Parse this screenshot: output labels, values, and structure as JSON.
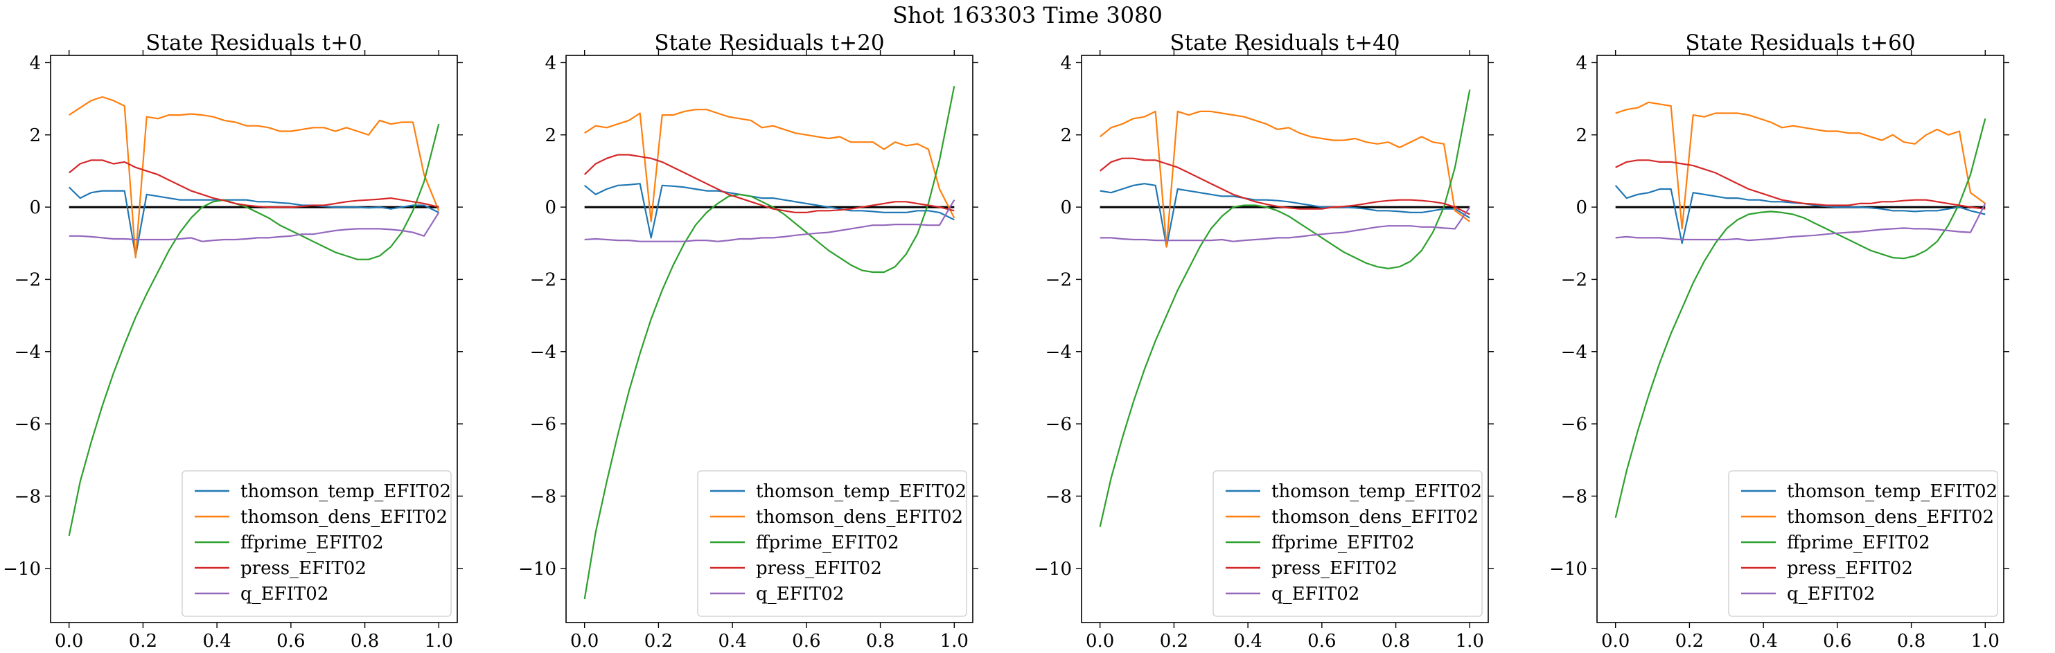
{
  "figure": {
    "suptitle": "Shot 163303   Time 3080"
  },
  "chart_data": [
    {
      "type": "line",
      "title": "State Residuals t+0",
      "xlim": [
        -0.05,
        1.05
      ],
      "ylim": [
        -11.5,
        4.2
      ],
      "xticks": [
        0.0,
        0.2,
        0.4,
        0.6,
        0.8,
        1.0
      ],
      "xtick_labels": [
        "0.0",
        "0.2",
        "0.4",
        "0.6",
        "0.8",
        "1.0"
      ],
      "yticks": [
        4,
        2,
        0,
        -2,
        -4,
        -6,
        -8,
        -10
      ],
      "ytick_labels": [
        "4",
        "2",
        "0",
        "−2",
        "−4",
        "−6",
        "−8",
        "−10"
      ],
      "legend": "lower-right",
      "grid": false,
      "baseline": 0,
      "x": [
        0.0,
        0.03,
        0.06,
        0.09,
        0.12,
        0.15,
        0.18,
        0.21,
        0.24,
        0.27,
        0.3,
        0.33,
        0.36,
        0.39,
        0.42,
        0.45,
        0.48,
        0.51,
        0.54,
        0.57,
        0.6,
        0.63,
        0.66,
        0.69,
        0.72,
        0.75,
        0.78,
        0.81,
        0.84,
        0.87,
        0.9,
        0.93,
        0.96,
        1.0
      ],
      "series": [
        {
          "name": "thomson_temp_EFIT02",
          "color": "#1f77b4",
          "values": [
            0.55,
            0.25,
            0.4,
            0.45,
            0.45,
            0.45,
            -1.35,
            0.35,
            0.3,
            0.25,
            0.2,
            0.2,
            0.2,
            0.2,
            0.2,
            0.2,
            0.2,
            0.15,
            0.15,
            0.12,
            0.1,
            0.05,
            0.05,
            0.02,
            0.0,
            0.0,
            0.0,
            -0.02,
            0.0,
            -0.05,
            0.0,
            0.05,
            0.05,
            -0.15
          ]
        },
        {
          "name": "thomson_dens_EFIT02",
          "color": "#ff7f0e",
          "values": [
            2.55,
            2.75,
            2.95,
            3.05,
            2.95,
            2.8,
            -1.4,
            2.5,
            2.45,
            2.55,
            2.55,
            2.58,
            2.55,
            2.5,
            2.4,
            2.35,
            2.25,
            2.25,
            2.2,
            2.1,
            2.1,
            2.15,
            2.2,
            2.2,
            2.1,
            2.2,
            2.1,
            2.0,
            2.4,
            2.3,
            2.35,
            2.35,
            0.9,
            -0.1
          ]
        },
        {
          "name": "ffprime_EFIT02",
          "color": "#2ca02c",
          "values": [
            -9.1,
            -7.6,
            -6.5,
            -5.5,
            -4.6,
            -3.8,
            -3.05,
            -2.4,
            -1.8,
            -1.2,
            -0.7,
            -0.3,
            0.0,
            0.15,
            0.2,
            0.1,
            0.0,
            -0.15,
            -0.3,
            -0.5,
            -0.65,
            -0.8,
            -0.95,
            -1.1,
            -1.25,
            -1.35,
            -1.45,
            -1.45,
            -1.35,
            -1.1,
            -0.7,
            -0.1,
            0.7,
            2.3
          ]
        },
        {
          "name": "press_EFIT02",
          "color": "#d62728",
          "values": [
            0.95,
            1.2,
            1.3,
            1.3,
            1.2,
            1.25,
            1.1,
            1.0,
            0.9,
            0.75,
            0.6,
            0.45,
            0.35,
            0.25,
            0.18,
            0.1,
            0.05,
            0.02,
            0.0,
            0.0,
            0.0,
            0.02,
            0.05,
            0.05,
            0.1,
            0.15,
            0.18,
            0.2,
            0.22,
            0.25,
            0.2,
            0.15,
            0.1,
            0.0
          ]
        },
        {
          "name": "q_EFIT02",
          "color": "#9467bd",
          "values": [
            -0.8,
            -0.8,
            -0.82,
            -0.85,
            -0.88,
            -0.88,
            -0.9,
            -0.9,
            -0.9,
            -0.9,
            -0.88,
            -0.85,
            -0.95,
            -0.92,
            -0.9,
            -0.9,
            -0.88,
            -0.85,
            -0.85,
            -0.82,
            -0.8,
            -0.75,
            -0.75,
            -0.7,
            -0.65,
            -0.62,
            -0.6,
            -0.6,
            -0.6,
            -0.62,
            -0.65,
            -0.7,
            -0.8,
            -0.15
          ]
        }
      ]
    },
    {
      "type": "line",
      "title": "State Residuals t+20",
      "xlim": [
        -0.05,
        1.05
      ],
      "ylim": [
        -11.5,
        4.2
      ],
      "xticks": [
        0.0,
        0.2,
        0.4,
        0.6,
        0.8,
        1.0
      ],
      "xtick_labels": [
        "0.0",
        "0.2",
        "0.4",
        "0.6",
        "0.8",
        "1.0"
      ],
      "yticks": [
        4,
        2,
        0,
        -2,
        -4,
        -6,
        -8,
        -10
      ],
      "ytick_labels": [
        "4",
        "2",
        "0",
        "−2",
        "−4",
        "−6",
        "−8",
        "−10"
      ],
      "legend": "lower-right",
      "grid": false,
      "baseline": 0,
      "x": [
        0.0,
        0.03,
        0.06,
        0.09,
        0.12,
        0.15,
        0.18,
        0.21,
        0.24,
        0.27,
        0.3,
        0.33,
        0.36,
        0.39,
        0.42,
        0.45,
        0.48,
        0.51,
        0.54,
        0.57,
        0.6,
        0.63,
        0.66,
        0.69,
        0.72,
        0.75,
        0.78,
        0.81,
        0.84,
        0.87,
        0.9,
        0.93,
        0.96,
        1.0
      ],
      "series": [
        {
          "name": "thomson_temp_EFIT02",
          "color": "#1f77b4",
          "values": [
            0.6,
            0.35,
            0.5,
            0.6,
            0.62,
            0.65,
            -0.85,
            0.6,
            0.58,
            0.55,
            0.5,
            0.45,
            0.45,
            0.4,
            0.35,
            0.3,
            0.25,
            0.25,
            0.2,
            0.15,
            0.1,
            0.05,
            0.0,
            -0.05,
            -0.1,
            -0.1,
            -0.12,
            -0.15,
            -0.15,
            -0.15,
            -0.1,
            -0.1,
            -0.15,
            -0.35
          ]
        },
        {
          "name": "thomson_dens_EFIT02",
          "color": "#ff7f0e",
          "values": [
            2.05,
            2.25,
            2.2,
            2.3,
            2.4,
            2.6,
            -0.4,
            2.55,
            2.55,
            2.65,
            2.7,
            2.7,
            2.6,
            2.5,
            2.45,
            2.4,
            2.2,
            2.25,
            2.15,
            2.05,
            2.0,
            1.95,
            1.9,
            1.95,
            1.8,
            1.8,
            1.8,
            1.6,
            1.8,
            1.7,
            1.75,
            1.6,
            0.5,
            -0.3
          ]
        },
        {
          "name": "ffprime_EFIT02",
          "color": "#2ca02c",
          "values": [
            -10.85,
            -9.0,
            -7.6,
            -6.3,
            -5.1,
            -4.05,
            -3.1,
            -2.3,
            -1.6,
            -1.0,
            -0.5,
            -0.15,
            0.1,
            0.3,
            0.35,
            0.3,
            0.15,
            0.0,
            -0.2,
            -0.45,
            -0.7,
            -0.95,
            -1.2,
            -1.4,
            -1.6,
            -1.75,
            -1.8,
            -1.8,
            -1.65,
            -1.3,
            -0.75,
            0.1,
            1.3,
            3.35
          ]
        },
        {
          "name": "press_EFIT02",
          "color": "#d62728",
          "values": [
            0.9,
            1.2,
            1.35,
            1.45,
            1.45,
            1.4,
            1.35,
            1.25,
            1.1,
            0.95,
            0.8,
            0.65,
            0.5,
            0.35,
            0.25,
            0.15,
            0.05,
            -0.05,
            -0.1,
            -0.15,
            -0.15,
            -0.1,
            -0.1,
            -0.08,
            -0.05,
            0.0,
            0.05,
            0.1,
            0.15,
            0.15,
            0.1,
            0.05,
            0.0,
            -0.1
          ]
        },
        {
          "name": "q_EFIT02",
          "color": "#9467bd",
          "values": [
            -0.9,
            -0.88,
            -0.9,
            -0.92,
            -0.92,
            -0.95,
            -0.95,
            -0.95,
            -0.95,
            -0.95,
            -0.92,
            -0.92,
            -0.95,
            -0.92,
            -0.88,
            -0.88,
            -0.85,
            -0.85,
            -0.82,
            -0.78,
            -0.75,
            -0.72,
            -0.7,
            -0.65,
            -0.6,
            -0.55,
            -0.5,
            -0.5,
            -0.48,
            -0.48,
            -0.48,
            -0.5,
            -0.5,
            0.2
          ]
        }
      ]
    },
    {
      "type": "line",
      "title": "State Residuals t+40",
      "xlim": [
        -0.05,
        1.05
      ],
      "ylim": [
        -11.5,
        4.2
      ],
      "xticks": [
        0.0,
        0.2,
        0.4,
        0.6,
        0.8,
        1.0
      ],
      "xtick_labels": [
        "0.0",
        "0.2",
        "0.4",
        "0.6",
        "0.8",
        "1.0"
      ],
      "yticks": [
        4,
        2,
        0,
        -2,
        -4,
        -6,
        -8,
        -10
      ],
      "ytick_labels": [
        "4",
        "2",
        "0",
        "−2",
        "−4",
        "−6",
        "−8",
        "−10"
      ],
      "legend": "lower-right",
      "grid": false,
      "baseline": 0,
      "x": [
        0.0,
        0.03,
        0.06,
        0.09,
        0.12,
        0.15,
        0.18,
        0.21,
        0.24,
        0.27,
        0.3,
        0.33,
        0.36,
        0.39,
        0.42,
        0.45,
        0.48,
        0.51,
        0.54,
        0.57,
        0.6,
        0.63,
        0.66,
        0.69,
        0.72,
        0.75,
        0.78,
        0.81,
        0.84,
        0.87,
        0.9,
        0.93,
        0.96,
        1.0
      ],
      "series": [
        {
          "name": "thomson_temp_EFIT02",
          "color": "#1f77b4",
          "values": [
            0.45,
            0.4,
            0.5,
            0.6,
            0.65,
            0.6,
            -1.1,
            0.5,
            0.45,
            0.4,
            0.35,
            0.3,
            0.3,
            0.25,
            0.2,
            0.2,
            0.18,
            0.15,
            0.1,
            0.05,
            0.0,
            0.0,
            0.0,
            -0.02,
            -0.05,
            -0.1,
            -0.1,
            -0.12,
            -0.15,
            -0.15,
            -0.1,
            -0.05,
            -0.05,
            -0.3
          ]
        },
        {
          "name": "thomson_dens_EFIT02",
          "color": "#ff7f0e",
          "values": [
            1.95,
            2.2,
            2.3,
            2.45,
            2.5,
            2.65,
            -1.1,
            2.65,
            2.55,
            2.65,
            2.65,
            2.6,
            2.55,
            2.5,
            2.4,
            2.3,
            2.15,
            2.2,
            2.05,
            1.95,
            1.9,
            1.85,
            1.85,
            1.9,
            1.8,
            1.75,
            1.8,
            1.65,
            1.8,
            1.95,
            1.8,
            1.75,
            -0.1,
            -0.4
          ]
        },
        {
          "name": "ffprime_EFIT02",
          "color": "#2ca02c",
          "values": [
            -8.85,
            -7.5,
            -6.4,
            -5.4,
            -4.5,
            -3.7,
            -3.0,
            -2.3,
            -1.7,
            -1.1,
            -0.6,
            -0.25,
            0.0,
            0.05,
            0.05,
            0.0,
            -0.1,
            -0.25,
            -0.45,
            -0.65,
            -0.85,
            -1.05,
            -1.25,
            -1.4,
            -1.55,
            -1.65,
            -1.7,
            -1.65,
            -1.5,
            -1.2,
            -0.7,
            0.0,
            1.1,
            3.25
          ]
        },
        {
          "name": "press_EFIT02",
          "color": "#d62728",
          "values": [
            1.0,
            1.25,
            1.35,
            1.35,
            1.3,
            1.3,
            1.2,
            1.1,
            0.95,
            0.8,
            0.65,
            0.5,
            0.35,
            0.25,
            0.15,
            0.08,
            0.02,
            -0.02,
            -0.05,
            -0.05,
            -0.05,
            0.0,
            0.02,
            0.05,
            0.1,
            0.15,
            0.18,
            0.2,
            0.2,
            0.18,
            0.15,
            0.1,
            0.0,
            -0.2
          ]
        },
        {
          "name": "q_EFIT02",
          "color": "#9467bd",
          "values": [
            -0.85,
            -0.85,
            -0.88,
            -0.9,
            -0.9,
            -0.92,
            -0.92,
            -0.92,
            -0.92,
            -0.92,
            -0.92,
            -0.9,
            -0.95,
            -0.92,
            -0.9,
            -0.88,
            -0.85,
            -0.85,
            -0.82,
            -0.78,
            -0.75,
            -0.72,
            -0.7,
            -0.65,
            -0.6,
            -0.55,
            -0.52,
            -0.52,
            -0.52,
            -0.55,
            -0.55,
            -0.58,
            -0.6,
            0.0
          ]
        }
      ]
    },
    {
      "type": "line",
      "title": "State Residuals t+60",
      "xlim": [
        -0.05,
        1.05
      ],
      "ylim": [
        -11.5,
        4.2
      ],
      "xticks": [
        0.0,
        0.2,
        0.4,
        0.6,
        0.8,
        1.0
      ],
      "xtick_labels": [
        "0.0",
        "0.2",
        "0.4",
        "0.6",
        "0.8",
        "1.0"
      ],
      "yticks": [
        4,
        2,
        0,
        -2,
        -4,
        -6,
        -8,
        -10
      ],
      "ytick_labels": [
        "4",
        "2",
        "0",
        "−2",
        "−4",
        "−6",
        "−8",
        "−10"
      ],
      "legend": "lower-right",
      "grid": false,
      "baseline": 0,
      "x": [
        0.0,
        0.03,
        0.06,
        0.09,
        0.12,
        0.15,
        0.18,
        0.21,
        0.24,
        0.27,
        0.3,
        0.33,
        0.36,
        0.39,
        0.42,
        0.45,
        0.48,
        0.51,
        0.54,
        0.57,
        0.6,
        0.63,
        0.66,
        0.69,
        0.72,
        0.75,
        0.78,
        0.81,
        0.84,
        0.87,
        0.9,
        0.93,
        0.96,
        1.0
      ],
      "series": [
        {
          "name": "thomson_temp_EFIT02",
          "color": "#1f77b4",
          "values": [
            0.6,
            0.25,
            0.35,
            0.4,
            0.5,
            0.5,
            -1.0,
            0.4,
            0.35,
            0.3,
            0.25,
            0.25,
            0.2,
            0.2,
            0.15,
            0.15,
            0.12,
            0.1,
            0.05,
            0.02,
            0.0,
            0.0,
            0.0,
            -0.02,
            -0.05,
            -0.1,
            -0.1,
            -0.12,
            -0.1,
            -0.1,
            -0.05,
            0.0,
            -0.1,
            -0.2
          ]
        },
        {
          "name": "thomson_dens_EFIT02",
          "color": "#ff7f0e",
          "values": [
            2.6,
            2.7,
            2.75,
            2.9,
            2.85,
            2.8,
            -0.6,
            2.55,
            2.5,
            2.6,
            2.6,
            2.6,
            2.55,
            2.45,
            2.35,
            2.2,
            2.25,
            2.2,
            2.15,
            2.1,
            2.1,
            2.05,
            2.05,
            1.95,
            1.85,
            2.0,
            1.8,
            1.75,
            2.0,
            2.15,
            2.0,
            2.1,
            0.4,
            0.1
          ]
        },
        {
          "name": "ffprime_EFIT02",
          "color": "#2ca02c",
          "values": [
            -8.6,
            -7.3,
            -6.2,
            -5.2,
            -4.3,
            -3.5,
            -2.8,
            -2.1,
            -1.5,
            -1.0,
            -0.6,
            -0.35,
            -0.2,
            -0.15,
            -0.12,
            -0.15,
            -0.2,
            -0.3,
            -0.45,
            -0.6,
            -0.75,
            -0.9,
            -1.05,
            -1.2,
            -1.3,
            -1.4,
            -1.42,
            -1.35,
            -1.2,
            -0.95,
            -0.5,
            0.1,
            0.9,
            2.45
          ]
        },
        {
          "name": "press_EFIT02",
          "color": "#d62728",
          "values": [
            1.1,
            1.25,
            1.3,
            1.3,
            1.25,
            1.25,
            1.2,
            1.15,
            1.05,
            0.95,
            0.8,
            0.65,
            0.5,
            0.4,
            0.3,
            0.2,
            0.15,
            0.1,
            0.08,
            0.05,
            0.05,
            0.05,
            0.1,
            0.1,
            0.15,
            0.15,
            0.18,
            0.2,
            0.2,
            0.15,
            0.1,
            0.05,
            0.0,
            -0.05
          ]
        },
        {
          "name": "q_EFIT02",
          "color": "#9467bd",
          "values": [
            -0.85,
            -0.82,
            -0.85,
            -0.85,
            -0.85,
            -0.88,
            -0.9,
            -0.9,
            -0.9,
            -0.9,
            -0.9,
            -0.88,
            -0.92,
            -0.9,
            -0.88,
            -0.85,
            -0.82,
            -0.8,
            -0.78,
            -0.75,
            -0.72,
            -0.7,
            -0.68,
            -0.65,
            -0.62,
            -0.6,
            -0.58,
            -0.6,
            -0.6,
            -0.62,
            -0.65,
            -0.68,
            -0.7,
            0.1
          ]
        }
      ]
    }
  ]
}
